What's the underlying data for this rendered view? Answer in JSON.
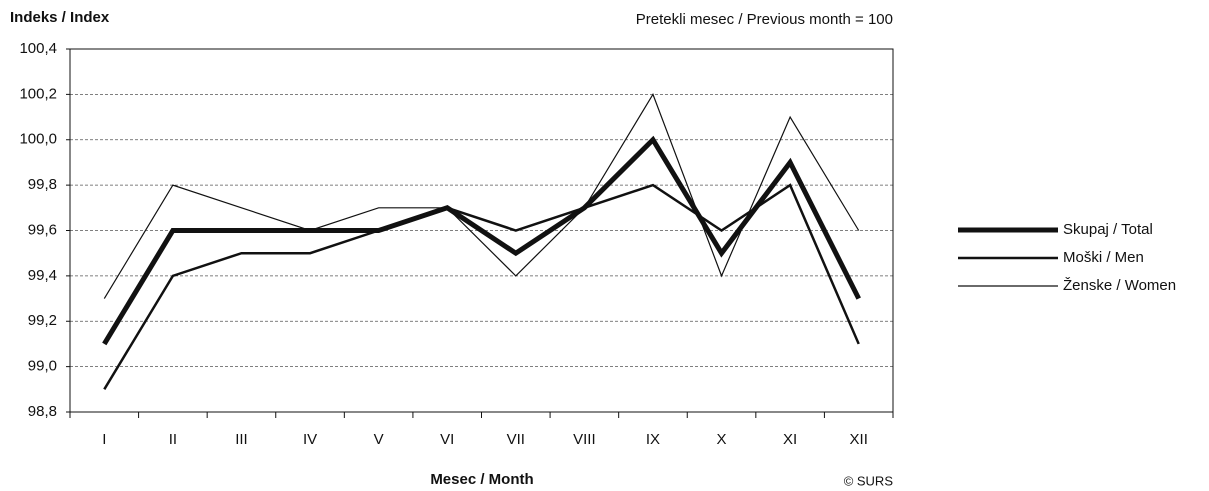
{
  "chart_data": {
    "type": "line",
    "title": "Indeks / Index",
    "subtitle": "Pretekli mesec / Previous month = 100",
    "x_label": "Mesec / Month",
    "source": "© SURS",
    "categories": [
      "I",
      "II",
      "III",
      "IV",
      "V",
      "VI",
      "VII",
      "VIII",
      "IX",
      "X",
      "XI",
      "XII"
    ],
    "series": [
      {
        "name": "Skupaj / Total",
        "color": "#111111",
        "values": [
          99.1,
          99.6,
          99.6,
          99.6,
          99.6,
          99.7,
          99.5,
          99.7,
          100.0,
          99.5,
          99.9,
          99.3
        ]
      },
      {
        "name": "Moški / Men",
        "color": "#111111",
        "values": [
          98.9,
          99.4,
          99.5,
          99.5,
          99.6,
          99.7,
          99.6,
          99.7,
          99.8,
          99.6,
          99.8,
          99.1
        ]
      },
      {
        "name": "Ženske / Women",
        "color": "#111111",
        "values": [
          99.3,
          99.8,
          99.7,
          99.6,
          99.7,
          99.7,
          99.4,
          99.7,
          100.2,
          99.4,
          100.1,
          99.6
        ]
      }
    ],
    "ylim": [
      98.8,
      100.4
    ],
    "yticks": [
      {
        "value": 98.8,
        "label": "98,8"
      },
      {
        "value": 99.0,
        "label": "99,0"
      },
      {
        "value": 99.2,
        "label": "99,2"
      },
      {
        "value": 99.4,
        "label": "99,4"
      },
      {
        "value": 99.6,
        "label": "99,6"
      },
      {
        "value": 99.8,
        "label": "99,8"
      },
      {
        "value": 100.0,
        "label": "100,0"
      },
      {
        "value": 100.2,
        "label": "100,2"
      },
      {
        "value": 100.4,
        "label": "100,4"
      }
    ],
    "grid": true,
    "legend": "right"
  }
}
